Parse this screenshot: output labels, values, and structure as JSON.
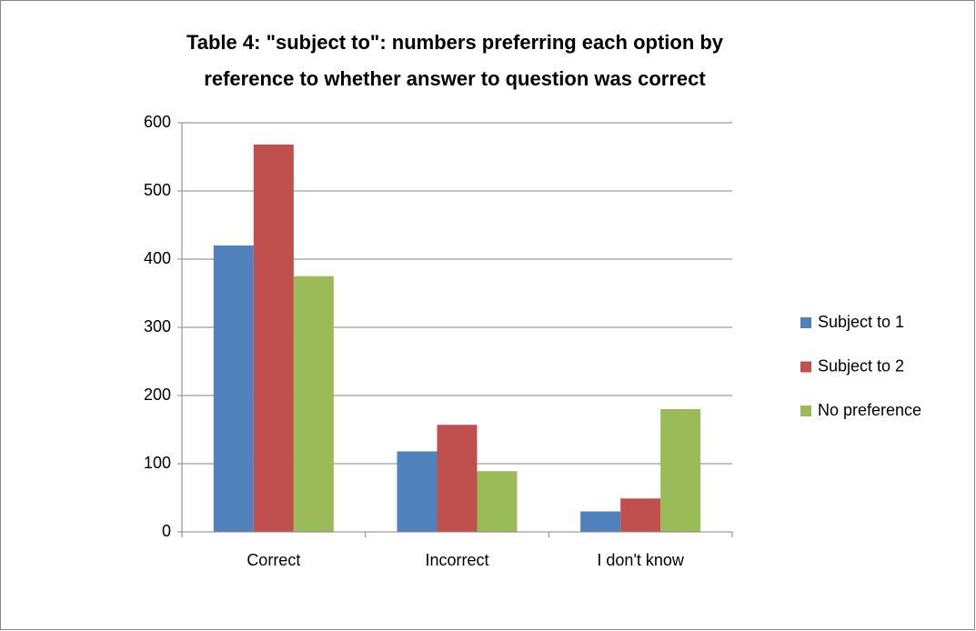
{
  "chart_data": {
    "type": "bar",
    "title": [
      "Table 4: \"subject to\": numbers preferring each option by",
      "reference to whether answer to question was correct"
    ],
    "categories": [
      "Correct",
      "Incorrect",
      "I don't know"
    ],
    "series": [
      {
        "name": "Subject to 1",
        "color": "#4f81bd",
        "values": [
          420,
          118,
          30
        ]
      },
      {
        "name": "Subject to 2",
        "color": "#c0504d",
        "values": [
          568,
          157,
          49
        ]
      },
      {
        "name": "No preference",
        "color": "#9bbb59",
        "values": [
          375,
          89,
          180
        ]
      }
    ],
    "ylim": [
      0,
      600
    ],
    "yticks": [
      0,
      100,
      200,
      300,
      400,
      500,
      600
    ],
    "grid": true,
    "legend": "right"
  }
}
